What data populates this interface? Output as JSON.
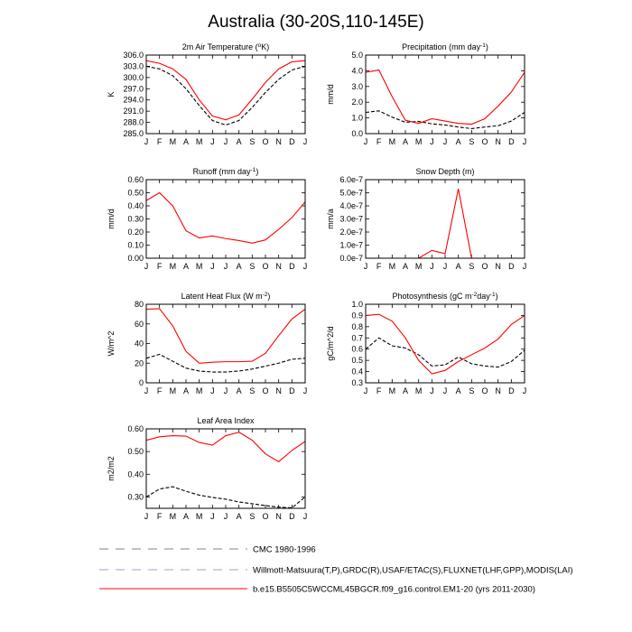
{
  "figure": {
    "title": "Australia (30-20S,110-145E)"
  },
  "legend": [
    {
      "label": "CMC 1980-1996",
      "color": "#7f7f9f",
      "dash": "dashed"
    },
    {
      "label": "Willmott-Matsuura(T,P),GRDC(R),USAF/ETAC(S),FLUXNET(LHF,GPP),MODIS(LAI)",
      "color": "#9f9fdf",
      "dash": "dashed"
    },
    {
      "label": "b.e15.B5505C5WCCML45BGCR.f09_g16.control.EM1-20 (yrs 2011-2030)",
      "color": "#ff0000",
      "dash": "solid"
    }
  ],
  "chart_data": [
    {
      "id": "t2m",
      "type": "line",
      "title": "2m Air Temperature (°K)",
      "title_main": "2m Air Temperature (",
      "title_sup": "o",
      "title_rest": "K)",
      "ylabel": "K",
      "categories": [
        "J",
        "F",
        "M",
        "A",
        "M",
        "J",
        "J",
        "A",
        "S",
        "O",
        "N",
        "D",
        "J"
      ],
      "ylim": [
        285.0,
        306.0
      ],
      "yticks": [
        285.0,
        288.0,
        291.0,
        294.0,
        297.0,
        300.0,
        303.0,
        306.0
      ],
      "ytick_labels": [
        "285.0",
        "288.0",
        "291.0",
        "294.0",
        "297.0",
        "300.0",
        "303.0",
        "306.0"
      ],
      "series": [
        {
          "style": "dashed",
          "color": "#000000",
          "values": [
            303.0,
            302.3,
            300.5,
            297.0,
            292.5,
            288.5,
            287.3,
            288.5,
            292.0,
            296.0,
            299.5,
            302.0,
            303.0
          ]
        },
        {
          "style": "solid",
          "color": "#ff0000",
          "values": [
            304.5,
            303.8,
            302.3,
            299.5,
            294.0,
            289.7,
            288.7,
            290.0,
            294.2,
            298.7,
            302.3,
            304.2,
            304.5
          ]
        }
      ]
    },
    {
      "id": "precip",
      "type": "line",
      "title": "Precipitation (mm day-1)",
      "title_main": "Precipitation (mm day",
      "title_sup": "-1",
      "title_rest": ")",
      "ylabel": "mm/d",
      "categories": [
        "J",
        "F",
        "M",
        "A",
        "M",
        "J",
        "J",
        "A",
        "S",
        "O",
        "N",
        "D",
        "J"
      ],
      "ylim": [
        0.0,
        5.0
      ],
      "yticks": [
        0.0,
        1.0,
        2.0,
        3.0,
        4.0,
        5.0
      ],
      "ytick_labels": [
        "0.0",
        "1.0",
        "2.0",
        "3.0",
        "4.0",
        "5.0"
      ],
      "series": [
        {
          "style": "dashed",
          "color": "#000000",
          "values": [
            1.35,
            1.45,
            1.05,
            0.72,
            0.78,
            0.62,
            0.55,
            0.42,
            0.32,
            0.42,
            0.5,
            0.8,
            1.35
          ]
        },
        {
          "style": "solid",
          "color": "#ff0000",
          "values": [
            3.9,
            4.05,
            2.35,
            0.85,
            0.65,
            0.95,
            0.8,
            0.65,
            0.6,
            0.95,
            1.75,
            2.65,
            3.9
          ]
        }
      ]
    },
    {
      "id": "runoff",
      "type": "line",
      "title": "Runoff (mm day-1)",
      "title_main": "Runoff (mm day",
      "title_sup": "-1",
      "title_rest": ")",
      "ylabel": "mm/d",
      "categories": [
        "J",
        "F",
        "M",
        "A",
        "M",
        "J",
        "J",
        "A",
        "S",
        "O",
        "N",
        "D",
        "J"
      ],
      "ylim": [
        0.0,
        0.6
      ],
      "yticks": [
        0.0,
        0.1,
        0.2,
        0.3,
        0.4,
        0.5,
        0.6
      ],
      "ytick_labels": [
        "0.00",
        "0.10",
        "0.20",
        "0.30",
        "0.40",
        "0.50",
        "0.60"
      ],
      "series": [
        {
          "style": "solid",
          "color": "#ff0000",
          "values": [
            0.44,
            0.5,
            0.4,
            0.21,
            0.155,
            0.17,
            0.15,
            0.135,
            0.115,
            0.14,
            0.22,
            0.31,
            0.43
          ]
        }
      ]
    },
    {
      "id": "snow",
      "type": "line",
      "title": "Snow Depth (m)",
      "title_main": "Snow Depth (m)",
      "title_sup": "",
      "title_rest": "",
      "ylabel": "mm/a",
      "categories": [
        "J",
        "F",
        "M",
        "A",
        "M",
        "J",
        "J",
        "A",
        "S",
        "O",
        "N",
        "D",
        "J"
      ],
      "ylim": [
        0.0,
        6e-07
      ],
      "yticks": [
        0.0,
        1e-07,
        2e-07,
        3e-07,
        4e-07,
        5e-07,
        6e-07
      ],
      "ytick_labels": [
        "0.0e-7",
        "1.0e-7",
        "2.0e-7",
        "3.0e-7",
        "4.0e-7",
        "5.0e-7",
        "6.0e-7"
      ],
      "series": [
        {
          "style": "solid",
          "color": "#ff0000",
          "values": [
            null,
            null,
            null,
            null,
            0.0,
            6e-08,
            3.5e-08,
            5.3e-07,
            0.0,
            null,
            null,
            null,
            null
          ]
        }
      ]
    },
    {
      "id": "lhf",
      "type": "line",
      "title": "Latent Heat Flux (W m-2)",
      "title_main": "Latent Heat Flux (W m",
      "title_sup": "-2",
      "title_rest": ")",
      "ylabel": "W/m^2",
      "categories": [
        "J",
        "F",
        "M",
        "A",
        "M",
        "J",
        "J",
        "A",
        "S",
        "O",
        "N",
        "D",
        "J"
      ],
      "ylim": [
        0,
        80
      ],
      "yticks": [
        0,
        20,
        40,
        60,
        80
      ],
      "ytick_labels": [
        "0",
        "20",
        "40",
        "60",
        "80"
      ],
      "series": [
        {
          "style": "dashed",
          "color": "#000000",
          "values": [
            25,
            29,
            22,
            15,
            12,
            11,
            11,
            12,
            14,
            17,
            20,
            24,
            25
          ]
        },
        {
          "style": "solid",
          "color": "#ff0000",
          "values": [
            75,
            75.5,
            58,
            32,
            20,
            21,
            21.5,
            21.5,
            22,
            30,
            48,
            65,
            75
          ]
        }
      ]
    },
    {
      "id": "gpp",
      "type": "line",
      "title": "Photosynthesis (gC m-2day-1)",
      "title_main": "Photosynthesis (gC m",
      "title_sup": "-2",
      "title_rest": "day",
      "title_sup2": "-1",
      "title_end": ")",
      "ylabel": "gC/m^2/d",
      "categories": [
        "J",
        "F",
        "M",
        "A",
        "M",
        "J",
        "J",
        "A",
        "S",
        "O",
        "N",
        "D",
        "J"
      ],
      "ylim": [
        0.3,
        1.0
      ],
      "yticks": [
        0.3,
        0.4,
        0.5,
        0.6,
        0.7,
        0.8,
        0.9,
        1.0
      ],
      "ytick_labels": [
        "0.3",
        "0.4",
        "0.5",
        "0.6",
        "0.7",
        "0.8",
        "0.9",
        "1.0"
      ],
      "series": [
        {
          "style": "dashed",
          "color": "#000000",
          "values": [
            0.6,
            0.7,
            0.63,
            0.61,
            0.55,
            0.45,
            0.46,
            0.53,
            0.47,
            0.45,
            0.44,
            0.49,
            0.59
          ]
        },
        {
          "style": "solid",
          "color": "#ff0000",
          "values": [
            0.9,
            0.91,
            0.85,
            0.7,
            0.5,
            0.38,
            0.41,
            0.49,
            0.55,
            0.61,
            0.69,
            0.82,
            0.9
          ]
        }
      ]
    },
    {
      "id": "lai",
      "type": "line",
      "title": "Leaf Area Index",
      "title_main": "Leaf Area Index",
      "title_sup": "",
      "title_rest": "",
      "ylabel": "m2/m2",
      "categories": [
        "J",
        "F",
        "M",
        "A",
        "M",
        "J",
        "J",
        "A",
        "S",
        "O",
        "N",
        "D",
        "J"
      ],
      "ylim": [
        0.25,
        0.6
      ],
      "yticks": [
        0.3,
        0.4,
        0.5,
        0.6
      ],
      "ytick_labels": [
        "0.30",
        "0.40",
        "0.50",
        "0.60"
      ],
      "series": [
        {
          "style": "dashed",
          "color": "#000000",
          "values": [
            0.3,
            0.335,
            0.345,
            0.325,
            0.308,
            0.298,
            0.29,
            0.278,
            0.27,
            0.262,
            0.255,
            0.252,
            0.3
          ]
        },
        {
          "style": "solid",
          "color": "#ff0000",
          "values": [
            0.55,
            0.565,
            0.57,
            0.568,
            0.54,
            0.528,
            0.57,
            0.585,
            0.55,
            0.49,
            0.455,
            0.505,
            0.545
          ]
        }
      ]
    }
  ]
}
